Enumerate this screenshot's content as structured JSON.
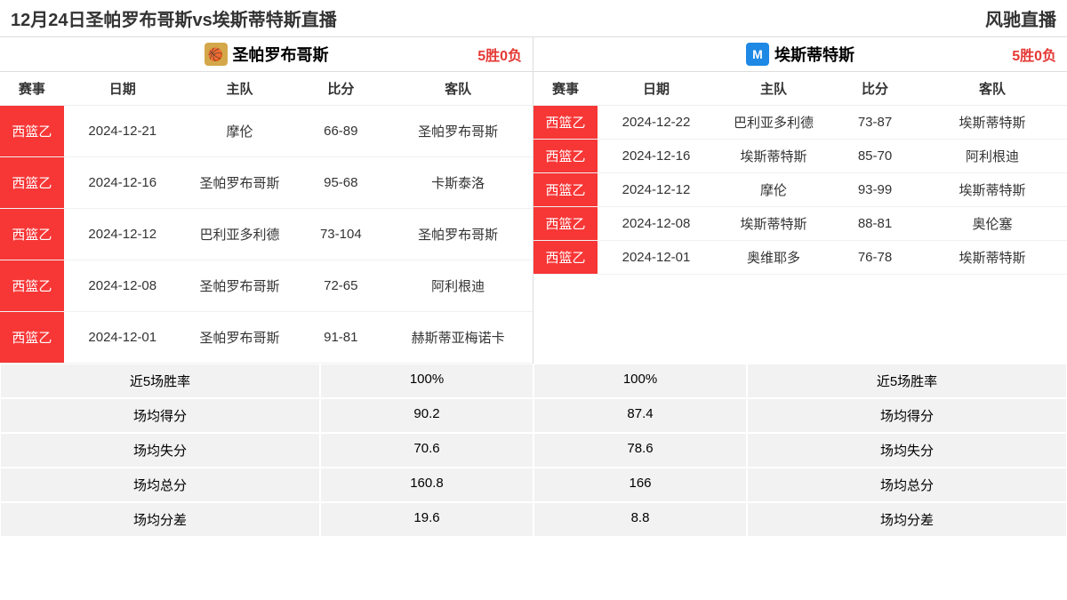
{
  "header": {
    "title": "12月24日圣帕罗布哥斯vs埃斯蒂特斯直播",
    "site": "风驰直播"
  },
  "colors": {
    "league_tag_bg": "#f73636",
    "league_tag_text": "#ffffff",
    "record_text": "#e53935",
    "stats_bg": "#f2f2f2",
    "border": "#dddddd"
  },
  "columns": [
    "赛事",
    "日期",
    "主队",
    "比分",
    "客队"
  ],
  "left": {
    "team_name": "圣帕罗布哥斯",
    "record": "5胜0负",
    "logo_bg": "#d4a84a",
    "logo_text": "🏀",
    "rows": [
      {
        "league": "西篮乙",
        "date": "2024-12-21",
        "home": "摩伦",
        "score": "66-89",
        "away": "圣帕罗布哥斯"
      },
      {
        "league": "西篮乙",
        "date": "2024-12-16",
        "home": "圣帕罗布哥斯",
        "score": "95-68",
        "away": "卡斯泰洛"
      },
      {
        "league": "西篮乙",
        "date": "2024-12-12",
        "home": "巴利亚多利德",
        "score": "73-104",
        "away": "圣帕罗布哥斯"
      },
      {
        "league": "西篮乙",
        "date": "2024-12-08",
        "home": "圣帕罗布哥斯",
        "score": "72-65",
        "away": "阿利根迪"
      },
      {
        "league": "西篮乙",
        "date": "2024-12-01",
        "home": "圣帕罗布哥斯",
        "score": "91-81",
        "away": "赫斯蒂亚梅诺卡"
      }
    ]
  },
  "right": {
    "team_name": "埃斯蒂特斯",
    "record": "5胜0负",
    "logo_bg": "#1e88e5",
    "logo_text": "M",
    "rows": [
      {
        "league": "西篮乙",
        "date": "2024-12-22",
        "home": "巴利亚多利德",
        "score": "73-87",
        "away": "埃斯蒂特斯"
      },
      {
        "league": "西篮乙",
        "date": "2024-12-16",
        "home": "埃斯蒂特斯",
        "score": "85-70",
        "away": "阿利根迪"
      },
      {
        "league": "西篮乙",
        "date": "2024-12-12",
        "home": "摩伦",
        "score": "93-99",
        "away": "埃斯蒂特斯"
      },
      {
        "league": "西篮乙",
        "date": "2024-12-08",
        "home": "埃斯蒂特斯",
        "score": "88-81",
        "away": "奥伦塞"
      },
      {
        "league": "西篮乙",
        "date": "2024-12-01",
        "home": "奥维耶多",
        "score": "76-78",
        "away": "埃斯蒂特斯"
      }
    ]
  },
  "stats": {
    "labels": {
      "win_rate": "近5场胜率",
      "avg_score": "场均得分",
      "avg_concede": "场均失分",
      "avg_total": "场均总分",
      "avg_diff": "场均分差"
    },
    "left": {
      "win_rate": "100%",
      "avg_score": "90.2",
      "avg_concede": "70.6",
      "avg_total": "160.8",
      "avg_diff": "19.6"
    },
    "right": {
      "win_rate": "100%",
      "avg_score": "87.4",
      "avg_concede": "78.6",
      "avg_total": "166",
      "avg_diff": "8.8"
    }
  }
}
